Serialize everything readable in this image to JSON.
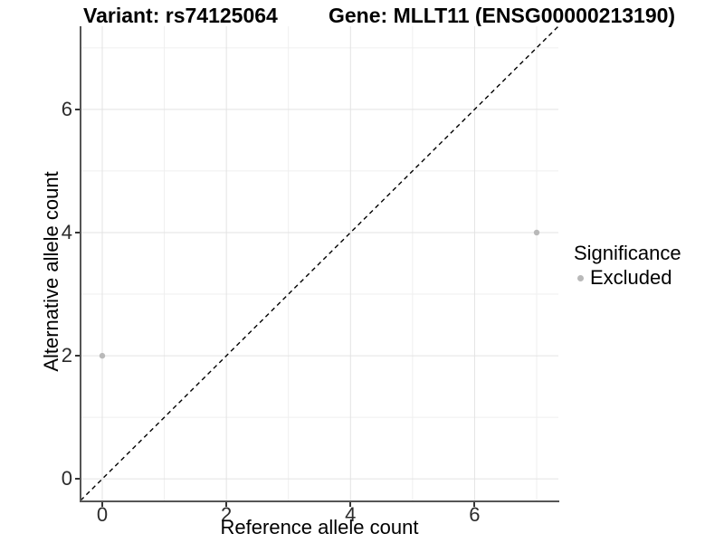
{
  "titles": {
    "left": "Variant: rs74125064",
    "right": "Gene: MLLT11 (ENSG00000213190)"
  },
  "chart_data": {
    "type": "scatter",
    "title_left": "Variant: rs74125064",
    "title_right": "Gene: MLLT11 (ENSG00000213190)",
    "xlabel": "Reference allele count",
    "ylabel": "Alternative allele count",
    "xlim": [
      -0.35,
      7.35
    ],
    "ylim": [
      -0.35,
      7.35
    ],
    "x_ticks": [
      0,
      2,
      4,
      6
    ],
    "y_ticks": [
      0,
      2,
      4,
      6
    ],
    "x_minor_ticks": [
      1,
      3,
      5,
      7
    ],
    "y_minor_ticks": [
      1,
      3,
      5,
      7
    ],
    "grid": true,
    "series": [
      {
        "name": "Excluded",
        "color": "#b9b9b9",
        "points": [
          [
            0,
            2
          ],
          [
            7,
            4
          ]
        ]
      }
    ],
    "reference_line": {
      "type": "identity",
      "style": "dashed",
      "from": [
        -0.35,
        -0.35
      ],
      "to": [
        7.35,
        7.35
      ],
      "color": "#000000"
    },
    "legend": {
      "title": "Significance",
      "position": "right",
      "entries": [
        {
          "label": "Excluded",
          "color": "#b9b9b9"
        }
      ]
    }
  },
  "colors": {
    "background": "#ffffff",
    "grid_major": "#e3e3e3",
    "grid_minor": "#efefef",
    "axis_line": "#555555",
    "tick_mark": "#333333",
    "tick_text": "#2b2b2b",
    "point": "#b9b9b9"
  }
}
